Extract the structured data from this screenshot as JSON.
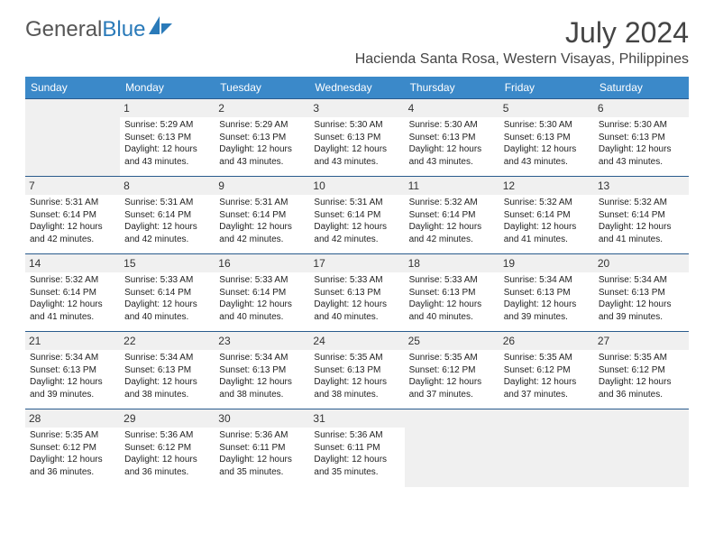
{
  "logo": {
    "text1": "General",
    "text2": "Blue"
  },
  "title": "July 2024",
  "location": "Hacienda Santa Rosa, Western Visayas, Philippines",
  "weekdays": [
    "Sunday",
    "Monday",
    "Tuesday",
    "Wednesday",
    "Thursday",
    "Friday",
    "Saturday"
  ],
  "colors": {
    "header_bg": "#3b89c9",
    "border": "#2a5b8d",
    "empty_bg": "#f0f0f0"
  },
  "weeks": [
    [
      null,
      {
        "n": "1",
        "sr": "Sunrise: 5:29 AM",
        "ss": "Sunset: 6:13 PM",
        "d1": "Daylight: 12 hours",
        "d2": "and 43 minutes."
      },
      {
        "n": "2",
        "sr": "Sunrise: 5:29 AM",
        "ss": "Sunset: 6:13 PM",
        "d1": "Daylight: 12 hours",
        "d2": "and 43 minutes."
      },
      {
        "n": "3",
        "sr": "Sunrise: 5:30 AM",
        "ss": "Sunset: 6:13 PM",
        "d1": "Daylight: 12 hours",
        "d2": "and 43 minutes."
      },
      {
        "n": "4",
        "sr": "Sunrise: 5:30 AM",
        "ss": "Sunset: 6:13 PM",
        "d1": "Daylight: 12 hours",
        "d2": "and 43 minutes."
      },
      {
        "n": "5",
        "sr": "Sunrise: 5:30 AM",
        "ss": "Sunset: 6:13 PM",
        "d1": "Daylight: 12 hours",
        "d2": "and 43 minutes."
      },
      {
        "n": "6",
        "sr": "Sunrise: 5:30 AM",
        "ss": "Sunset: 6:13 PM",
        "d1": "Daylight: 12 hours",
        "d2": "and 43 minutes."
      }
    ],
    [
      {
        "n": "7",
        "sr": "Sunrise: 5:31 AM",
        "ss": "Sunset: 6:14 PM",
        "d1": "Daylight: 12 hours",
        "d2": "and 42 minutes."
      },
      {
        "n": "8",
        "sr": "Sunrise: 5:31 AM",
        "ss": "Sunset: 6:14 PM",
        "d1": "Daylight: 12 hours",
        "d2": "and 42 minutes."
      },
      {
        "n": "9",
        "sr": "Sunrise: 5:31 AM",
        "ss": "Sunset: 6:14 PM",
        "d1": "Daylight: 12 hours",
        "d2": "and 42 minutes."
      },
      {
        "n": "10",
        "sr": "Sunrise: 5:31 AM",
        "ss": "Sunset: 6:14 PM",
        "d1": "Daylight: 12 hours",
        "d2": "and 42 minutes."
      },
      {
        "n": "11",
        "sr": "Sunrise: 5:32 AM",
        "ss": "Sunset: 6:14 PM",
        "d1": "Daylight: 12 hours",
        "d2": "and 42 minutes."
      },
      {
        "n": "12",
        "sr": "Sunrise: 5:32 AM",
        "ss": "Sunset: 6:14 PM",
        "d1": "Daylight: 12 hours",
        "d2": "and 41 minutes."
      },
      {
        "n": "13",
        "sr": "Sunrise: 5:32 AM",
        "ss": "Sunset: 6:14 PM",
        "d1": "Daylight: 12 hours",
        "d2": "and 41 minutes."
      }
    ],
    [
      {
        "n": "14",
        "sr": "Sunrise: 5:32 AM",
        "ss": "Sunset: 6:14 PM",
        "d1": "Daylight: 12 hours",
        "d2": "and 41 minutes."
      },
      {
        "n": "15",
        "sr": "Sunrise: 5:33 AM",
        "ss": "Sunset: 6:14 PM",
        "d1": "Daylight: 12 hours",
        "d2": "and 40 minutes."
      },
      {
        "n": "16",
        "sr": "Sunrise: 5:33 AM",
        "ss": "Sunset: 6:14 PM",
        "d1": "Daylight: 12 hours",
        "d2": "and 40 minutes."
      },
      {
        "n": "17",
        "sr": "Sunrise: 5:33 AM",
        "ss": "Sunset: 6:13 PM",
        "d1": "Daylight: 12 hours",
        "d2": "and 40 minutes."
      },
      {
        "n": "18",
        "sr": "Sunrise: 5:33 AM",
        "ss": "Sunset: 6:13 PM",
        "d1": "Daylight: 12 hours",
        "d2": "and 40 minutes."
      },
      {
        "n": "19",
        "sr": "Sunrise: 5:34 AM",
        "ss": "Sunset: 6:13 PM",
        "d1": "Daylight: 12 hours",
        "d2": "and 39 minutes."
      },
      {
        "n": "20",
        "sr": "Sunrise: 5:34 AM",
        "ss": "Sunset: 6:13 PM",
        "d1": "Daylight: 12 hours",
        "d2": "and 39 minutes."
      }
    ],
    [
      {
        "n": "21",
        "sr": "Sunrise: 5:34 AM",
        "ss": "Sunset: 6:13 PM",
        "d1": "Daylight: 12 hours",
        "d2": "and 39 minutes."
      },
      {
        "n": "22",
        "sr": "Sunrise: 5:34 AM",
        "ss": "Sunset: 6:13 PM",
        "d1": "Daylight: 12 hours",
        "d2": "and 38 minutes."
      },
      {
        "n": "23",
        "sr": "Sunrise: 5:34 AM",
        "ss": "Sunset: 6:13 PM",
        "d1": "Daylight: 12 hours",
        "d2": "and 38 minutes."
      },
      {
        "n": "24",
        "sr": "Sunrise: 5:35 AM",
        "ss": "Sunset: 6:13 PM",
        "d1": "Daylight: 12 hours",
        "d2": "and 38 minutes."
      },
      {
        "n": "25",
        "sr": "Sunrise: 5:35 AM",
        "ss": "Sunset: 6:12 PM",
        "d1": "Daylight: 12 hours",
        "d2": "and 37 minutes."
      },
      {
        "n": "26",
        "sr": "Sunrise: 5:35 AM",
        "ss": "Sunset: 6:12 PM",
        "d1": "Daylight: 12 hours",
        "d2": "and 37 minutes."
      },
      {
        "n": "27",
        "sr": "Sunrise: 5:35 AM",
        "ss": "Sunset: 6:12 PM",
        "d1": "Daylight: 12 hours",
        "d2": "and 36 minutes."
      }
    ],
    [
      {
        "n": "28",
        "sr": "Sunrise: 5:35 AM",
        "ss": "Sunset: 6:12 PM",
        "d1": "Daylight: 12 hours",
        "d2": "and 36 minutes."
      },
      {
        "n": "29",
        "sr": "Sunrise: 5:36 AM",
        "ss": "Sunset: 6:12 PM",
        "d1": "Daylight: 12 hours",
        "d2": "and 36 minutes."
      },
      {
        "n": "30",
        "sr": "Sunrise: 5:36 AM",
        "ss": "Sunset: 6:11 PM",
        "d1": "Daylight: 12 hours",
        "d2": "and 35 minutes."
      },
      {
        "n": "31",
        "sr": "Sunrise: 5:36 AM",
        "ss": "Sunset: 6:11 PM",
        "d1": "Daylight: 12 hours",
        "d2": "and 35 minutes."
      },
      null,
      null,
      null
    ]
  ]
}
